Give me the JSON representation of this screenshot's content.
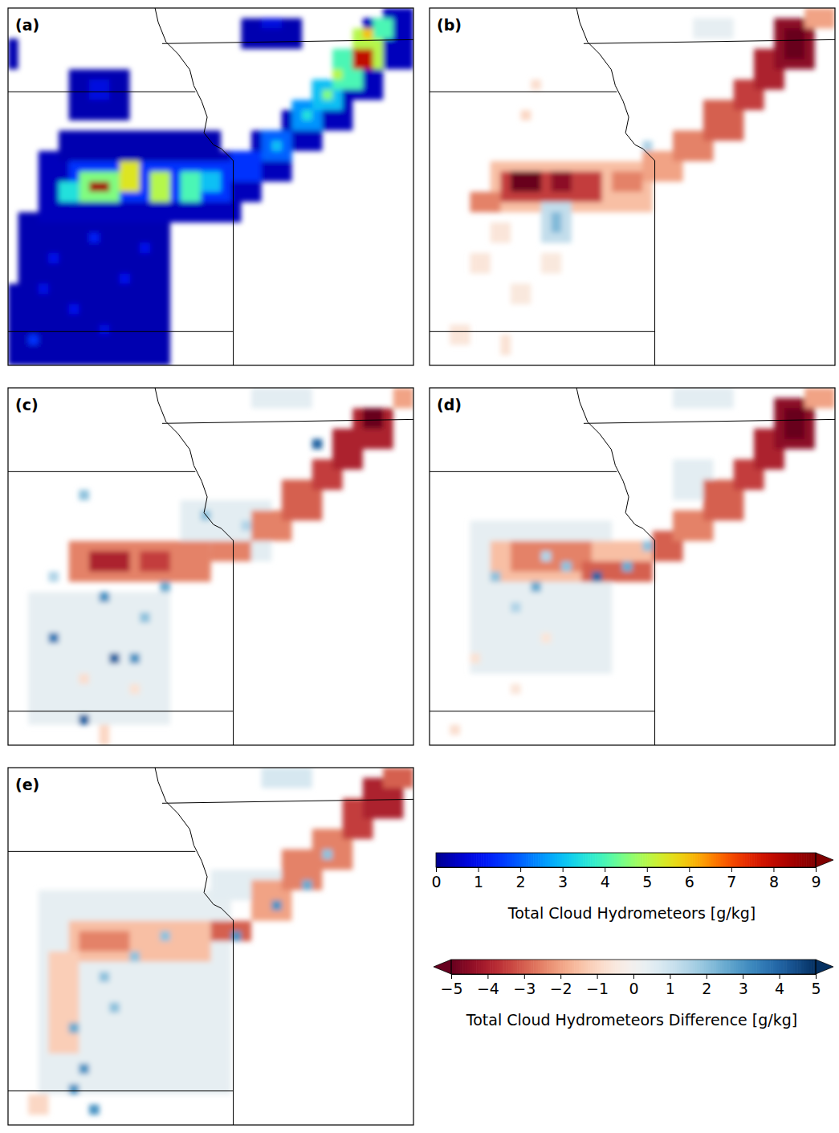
{
  "chart_data": {
    "type": "heatmap-panels",
    "tick_labels": false,
    "panels": [
      {
        "label": "(a)",
        "colorbar": 0,
        "xlim": [
          0,
          40
        ],
        "ylim": [
          0,
          35
        ],
        "cells": [
          [
            1,
            20,
            16,
            35,
            0.3
          ],
          [
            0,
            27,
            3,
            35,
            0.3
          ],
          [
            3,
            14,
            23,
            21,
            0.4
          ],
          [
            5,
            12,
            21,
            15,
            0.3
          ],
          [
            21,
            15,
            25,
            19,
            0.4
          ],
          [
            24,
            12,
            28,
            17,
            0.4
          ],
          [
            27,
            10,
            31,
            14,
            0.4
          ],
          [
            30,
            7,
            34,
            12,
            0.4
          ],
          [
            33,
            4,
            37,
            9,
            0.4
          ],
          [
            35,
            1,
            40,
            6,
            0.4
          ],
          [
            37,
            0,
            40,
            3,
            0.4
          ],
          [
            6,
            6,
            12,
            11,
            0.3
          ],
          [
            8,
            7,
            10,
            9,
            0.8
          ],
          [
            23,
            1,
            29,
            4,
            0.3
          ],
          [
            25,
            1,
            27,
            2,
            0.8
          ],
          [
            0,
            3,
            1,
            6,
            0.3
          ],
          [
            4,
            24,
            5,
            25,
            1
          ],
          [
            8,
            22,
            9,
            23,
            1.2
          ],
          [
            11,
            26,
            12,
            27,
            1
          ],
          [
            6,
            29,
            7,
            30,
            1
          ],
          [
            2,
            32,
            3,
            33,
            1.5
          ],
          [
            9,
            31,
            10,
            32,
            0.8
          ],
          [
            13,
            23,
            14,
            24,
            1
          ],
          [
            3,
            27,
            4,
            28,
            0.9
          ],
          [
            6,
            15,
            22,
            19,
            1.5
          ],
          [
            7,
            16,
            11,
            19,
            4.5
          ],
          [
            8,
            17,
            10,
            18,
            8.5
          ],
          [
            11,
            15,
            13,
            18,
            5.5
          ],
          [
            14,
            16,
            16,
            19,
            5
          ],
          [
            17,
            16,
            19,
            19,
            4
          ],
          [
            19,
            16,
            21,
            18,
            3
          ],
          [
            5,
            17,
            7,
            19,
            3.5
          ],
          [
            22,
            14,
            25,
            17,
            1.5
          ],
          [
            25,
            12,
            28,
            15,
            2
          ],
          [
            28,
            9,
            31,
            12,
            2.5
          ],
          [
            30,
            7,
            33,
            10,
            3
          ],
          [
            32,
            4,
            35,
            8,
            4
          ],
          [
            34,
            2,
            37,
            6,
            5
          ],
          [
            36,
            1,
            38,
            3,
            4
          ],
          [
            34,
            4,
            36,
            6,
            8
          ],
          [
            32,
            6,
            33,
            7,
            5
          ],
          [
            31,
            8,
            32,
            9,
            4.5
          ],
          [
            29,
            10,
            30,
            11,
            3.5
          ],
          [
            26,
            13,
            27,
            14,
            3
          ],
          [
            35,
            2,
            36,
            3,
            6
          ]
        ]
      },
      {
        "label": "(b)",
        "colorbar": 1,
        "xlim": [
          0,
          40
        ],
        "ylim": [
          0,
          35
        ],
        "cells": [
          [
            4,
            24,
            6,
            26,
            -0.6
          ],
          [
            8,
            27,
            10,
            29,
            -0.5
          ],
          [
            2,
            31,
            4,
            33,
            -0.6
          ],
          [
            11,
            24,
            13,
            26,
            -0.5
          ],
          [
            7,
            32,
            8,
            34,
            -0.7
          ],
          [
            6,
            21,
            8,
            23,
            -0.6
          ],
          [
            6,
            15,
            22,
            20,
            -1.5
          ],
          [
            7,
            16,
            17,
            19,
            -3.5
          ],
          [
            8,
            16,
            11,
            18,
            -5
          ],
          [
            12,
            16,
            14,
            18,
            -4.5
          ],
          [
            18,
            16,
            21,
            18,
            -2.5
          ],
          [
            4,
            18,
            7,
            20,
            -2.5
          ],
          [
            11,
            19,
            14,
            23,
            1.2
          ],
          [
            12,
            20,
            13,
            22,
            2.2
          ],
          [
            21,
            14,
            25,
            17,
            -2
          ],
          [
            24,
            12,
            28,
            15,
            -2.5
          ],
          [
            27,
            9,
            31,
            13,
            -3
          ],
          [
            30,
            7,
            33,
            10,
            -3.5
          ],
          [
            32,
            4,
            35,
            8,
            -4
          ],
          [
            34,
            1,
            38,
            6,
            -4.5
          ],
          [
            35,
            2,
            37,
            5,
            -5.5
          ],
          [
            37,
            0,
            40,
            2,
            -2
          ],
          [
            21,
            13,
            22,
            14,
            1.5
          ],
          [
            26,
            1,
            30,
            3,
            0.4
          ],
          [
            9,
            10,
            10,
            11,
            -1
          ],
          [
            10,
            7,
            11,
            8,
            -0.8
          ]
        ]
      },
      {
        "label": "(c)",
        "colorbar": 1,
        "xlim": [
          0,
          40
        ],
        "ylim": [
          0,
          35
        ],
        "cells": [
          [
            2,
            20,
            16,
            33,
            0.4
          ],
          [
            17,
            11,
            26,
            17,
            0.5
          ],
          [
            24,
            0,
            30,
            2,
            0.5
          ],
          [
            6,
            15,
            20,
            19,
            -2.5
          ],
          [
            8,
            16,
            12,
            18,
            -4
          ],
          [
            13,
            16,
            16,
            18,
            -3.5
          ],
          [
            17,
            16,
            20,
            18,
            -2.5
          ],
          [
            20,
            15,
            24,
            17,
            -2.5
          ],
          [
            24,
            12,
            28,
            15,
            -2.5
          ],
          [
            27,
            9,
            31,
            13,
            -3
          ],
          [
            30,
            7,
            33,
            10,
            -3.5
          ],
          [
            32,
            4,
            35,
            8,
            -4
          ],
          [
            34,
            2,
            38,
            6,
            -4
          ],
          [
            35,
            2,
            37,
            4,
            -5
          ],
          [
            38,
            0,
            40,
            2,
            -2
          ],
          [
            30,
            5,
            31,
            6,
            4
          ],
          [
            4,
            24,
            5,
            25,
            3.5
          ],
          [
            10,
            26,
            11,
            27,
            4
          ],
          [
            9,
            20,
            10,
            21,
            3
          ],
          [
            7,
            32,
            8,
            33,
            4
          ],
          [
            7,
            10,
            8,
            11,
            2
          ],
          [
            13,
            22,
            14,
            23,
            2
          ],
          [
            4,
            18,
            5,
            19,
            1.5
          ],
          [
            12,
            26,
            13,
            27,
            3
          ],
          [
            15,
            19,
            16,
            20,
            2.5
          ],
          [
            19,
            12,
            20,
            13,
            2
          ],
          [
            23,
            13,
            24,
            14,
            1.5
          ],
          [
            7,
            28,
            8,
            29,
            -0.8
          ],
          [
            9,
            33,
            10,
            35,
            -1
          ],
          [
            12,
            29,
            13,
            30,
            -0.7
          ]
        ]
      },
      {
        "label": "(d)",
        "colorbar": 1,
        "xlim": [
          0,
          40
        ],
        "ylim": [
          0,
          35
        ],
        "cells": [
          [
            4,
            13,
            18,
            28,
            0.4
          ],
          [
            24,
            0,
            30,
            2,
            0.5
          ],
          [
            24,
            7,
            28,
            11,
            0.5
          ],
          [
            6,
            15,
            22,
            19,
            -1.5
          ],
          [
            8,
            15,
            16,
            18,
            -2.5
          ],
          [
            15,
            17,
            22,
            19,
            -3
          ],
          [
            22,
            14,
            25,
            17,
            -3
          ],
          [
            16,
            18,
            17,
            19,
            4
          ],
          [
            6,
            18,
            7,
            19,
            2
          ],
          [
            10,
            19,
            11,
            20,
            2.5
          ],
          [
            13,
            17,
            14,
            18,
            2
          ],
          [
            19,
            17,
            20,
            18,
            2.5
          ],
          [
            8,
            21,
            9,
            22,
            1.5
          ],
          [
            11,
            16,
            12,
            17,
            1.5
          ],
          [
            24,
            12,
            28,
            15,
            -2.5
          ],
          [
            27,
            9,
            31,
            13,
            -3
          ],
          [
            30,
            7,
            33,
            10,
            -3.5
          ],
          [
            32,
            4,
            35,
            8,
            -4
          ],
          [
            34,
            1,
            38,
            6,
            -4.5
          ],
          [
            35,
            2,
            37,
            5,
            -5.5
          ],
          [
            37,
            0,
            40,
            2,
            -2
          ],
          [
            4,
            26,
            5,
            27,
            -0.7
          ],
          [
            8,
            29,
            9,
            30,
            -0.6
          ],
          [
            2,
            33,
            3,
            34,
            -0.8
          ],
          [
            11,
            24,
            12,
            25,
            -0.6
          ],
          [
            21,
            15,
            22,
            16,
            2
          ]
        ]
      },
      {
        "label": "(e)",
        "colorbar": 1,
        "xlim": [
          0,
          40
        ],
        "ylim": [
          0,
          35
        ],
        "cells": [
          [
            3,
            12,
            22,
            32,
            0.4
          ],
          [
            25,
            0,
            30,
            2,
            0.8
          ],
          [
            20,
            10,
            27,
            13,
            0.5
          ],
          [
            6,
            15,
            20,
            19,
            -1.5
          ],
          [
            7,
            16,
            12,
            18,
            -2.5
          ],
          [
            4,
            18,
            7,
            28,
            -1.2
          ],
          [
            2,
            32,
            4,
            34,
            -1
          ],
          [
            20,
            15,
            24,
            17,
            -3
          ],
          [
            24,
            11,
            28,
            15,
            -2
          ],
          [
            27,
            8,
            31,
            12,
            -2.5
          ],
          [
            30,
            6,
            34,
            10,
            -2.5
          ],
          [
            33,
            3,
            36,
            7,
            -3.5
          ],
          [
            35,
            1,
            39,
            5,
            -4
          ],
          [
            37,
            0,
            40,
            2,
            -3
          ],
          [
            29,
            11,
            30,
            12,
            2.5
          ],
          [
            26,
            13,
            27,
            14,
            3
          ],
          [
            31,
            8,
            32,
            9,
            2
          ],
          [
            6,
            25,
            7,
            26,
            2.5
          ],
          [
            7,
            29,
            8,
            30,
            3
          ],
          [
            6,
            31,
            7,
            32,
            3
          ],
          [
            8,
            33,
            9,
            34,
            3
          ],
          [
            12,
            18,
            13,
            19,
            2
          ],
          [
            15,
            16,
            16,
            17,
            2
          ],
          [
            9,
            20,
            10,
            21,
            2
          ],
          [
            22,
            16,
            23,
            17,
            3
          ],
          [
            10,
            23,
            11,
            24,
            2
          ]
        ]
      }
    ],
    "colorbars": [
      {
        "type": "sequential",
        "label": "Total Cloud Hydrometeors [g/kg]",
        "range": [
          0,
          9
        ],
        "ticks": [
          0,
          1,
          2,
          3,
          4,
          5,
          6,
          7,
          8,
          9
        ]
      },
      {
        "type": "diverging",
        "label": "Total Cloud Hydrometeors Difference [g/kg]",
        "range": [
          -5,
          5
        ],
        "ticks": [
          {
            "value": -5,
            "label": "−5"
          },
          {
            "value": -4,
            "label": "−4"
          },
          {
            "value": -3,
            "label": "−3"
          },
          {
            "value": -2,
            "label": "−2"
          },
          {
            "value": -1,
            "label": "−1"
          },
          0,
          1,
          2,
          3,
          4,
          5
        ]
      }
    ]
  }
}
